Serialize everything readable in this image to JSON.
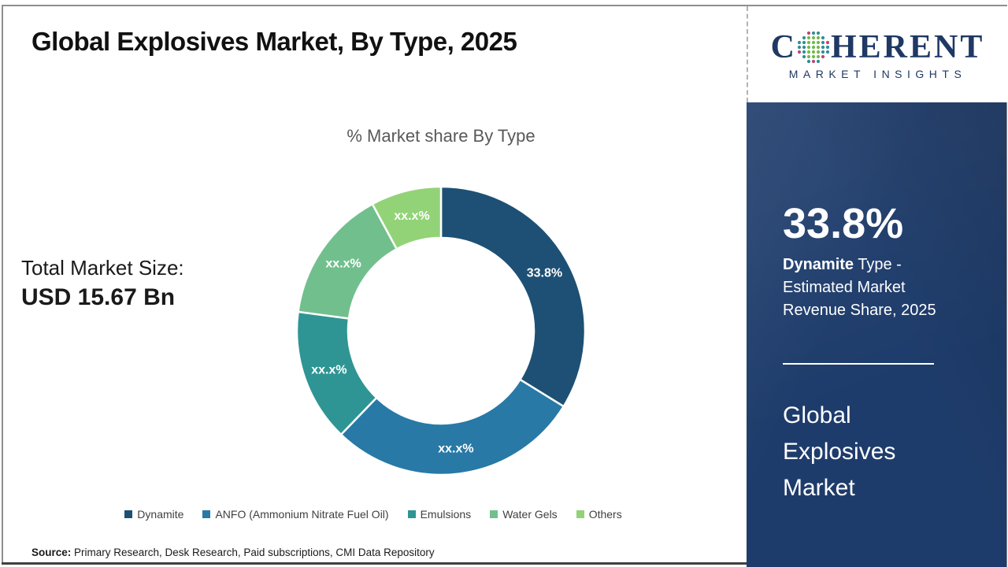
{
  "slide": {
    "title": "Global Explosives Market, By Type, 2025",
    "total_label": "Total Market Size:",
    "total_value": "USD 15.67 Bn",
    "source_label": "Source:",
    "source_text": " Primary Research, Desk Research, Paid subscriptions, CMI Data Repository"
  },
  "logo": {
    "word_start": "C",
    "word_end": "HERENT",
    "subtitle": "MARKET INSIGHTS",
    "brand_color": "#1f3864",
    "dot_colors": {
      "teal": "#2f8f96",
      "green": "#74b94e",
      "pink": "#c24477"
    }
  },
  "panel": {
    "background_color": "#1e3c6b",
    "stat_value": "33.8%",
    "stat_desc_bold": "Dynamite",
    "stat_desc_rest": " Type - Estimated Market Revenue Share, 2025",
    "market_name": "Global Explosives Market"
  },
  "chart_data": {
    "type": "pie",
    "donut": true,
    "title": "% Market share By Type",
    "categories": [
      "Dynamite",
      "ANFO (Ammonium Nitrate Fuel Oil)",
      "Emulsions",
      "Water Gels",
      "Others"
    ],
    "values": [
      33.8,
      28.4,
      14.9,
      15.0,
      7.9
    ],
    "labels": [
      "33.8%",
      "xx.x%",
      "xx.x%",
      "xx.x%",
      "xx.x%"
    ],
    "colors": [
      "#1d5074",
      "#2879a6",
      "#2f9594",
      "#72bf8e",
      "#92d377"
    ],
    "start_angle_deg": 0,
    "direction": "clockwise",
    "legend_position": "bottom",
    "label_color": "#ffffff"
  }
}
